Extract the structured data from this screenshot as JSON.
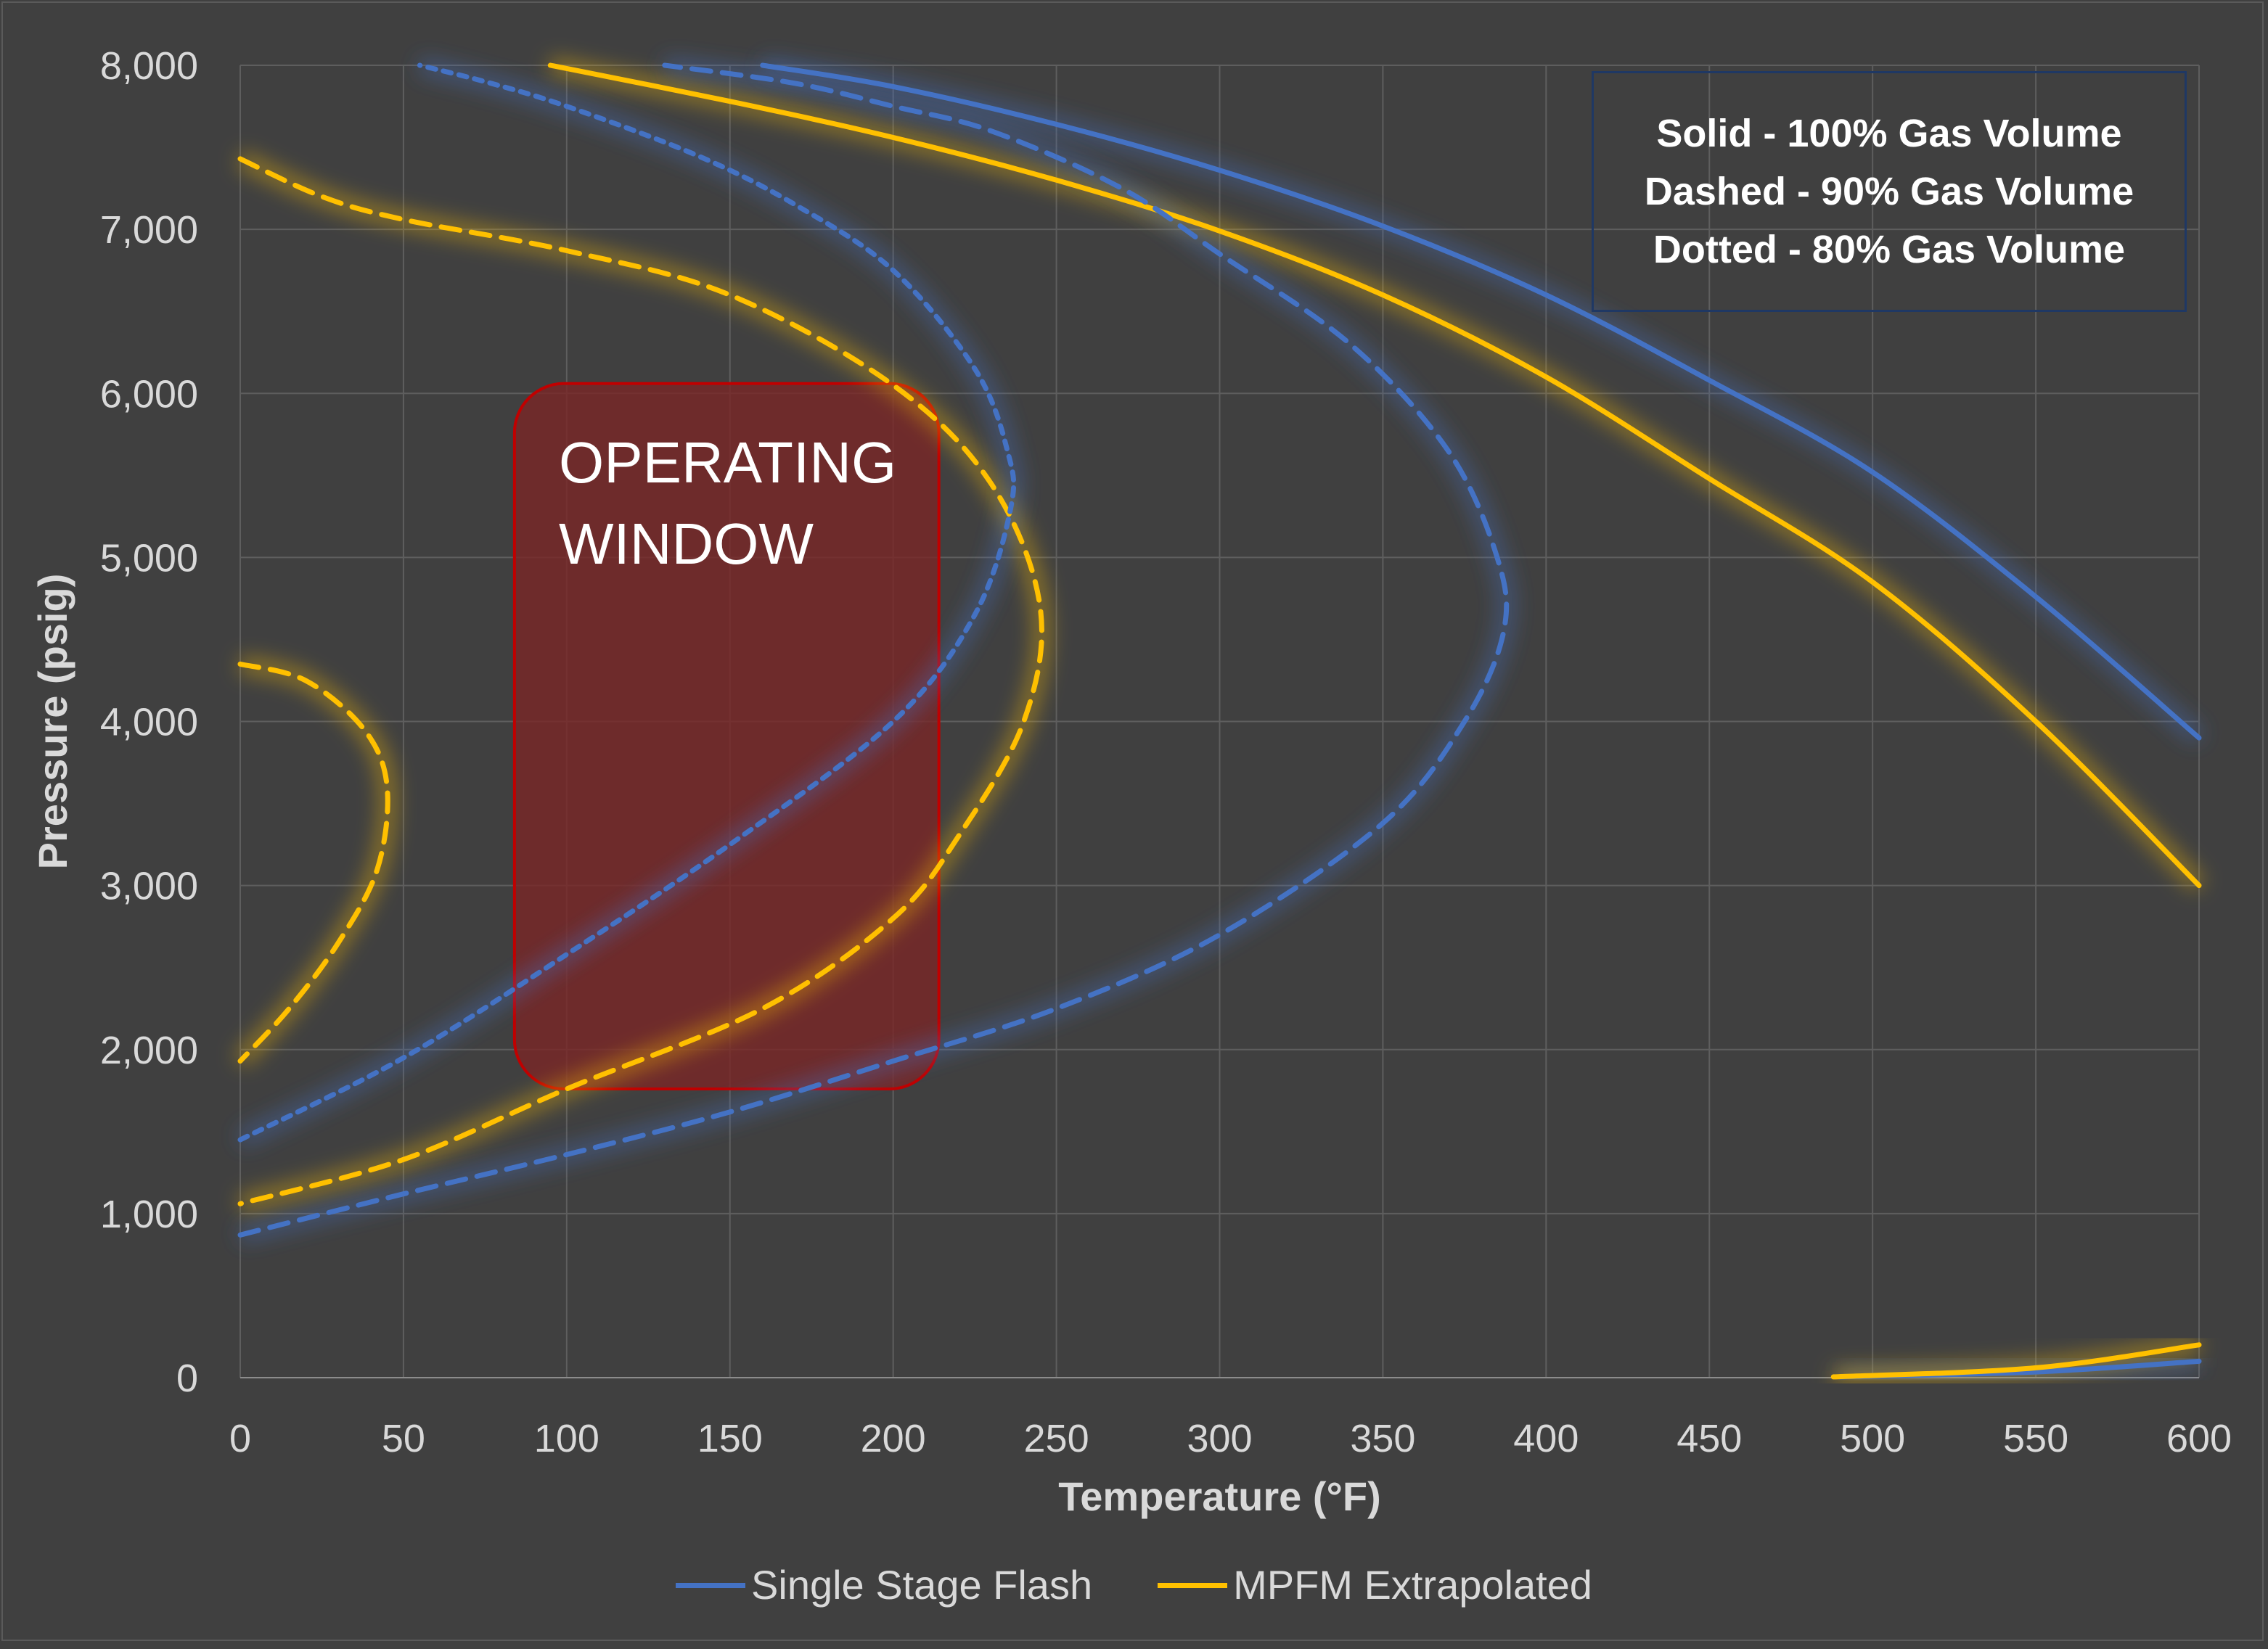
{
  "chart_data": {
    "type": "line",
    "xlabel": "Temperature (°F)",
    "ylabel": "Pressure (psig)",
    "xlim": [
      0,
      600
    ],
    "ylim": [
      0,
      8000
    ],
    "x_ticks": [
      "0",
      "50",
      "100",
      "150",
      "200",
      "250",
      "300",
      "350",
      "400",
      "450",
      "500",
      "550",
      "600"
    ],
    "y_ticks": [
      "0",
      "1,000",
      "2,000",
      "3,000",
      "4,000",
      "5,000",
      "6,000",
      "7,000",
      "8,000"
    ],
    "grid": true,
    "legend_position": "bottom",
    "legend_entries": [
      {
        "name": "Single Stage Flash",
        "color": "#4472c4"
      },
      {
        "name": "MPFM Extrapolated",
        "color": "#ffc000"
      }
    ],
    "annotation_box": {
      "lines": [
        "Solid - 100% Gas Volume",
        "Dashed - 90% Gas Volume",
        "Dotted - 80% Gas Volume"
      ],
      "position": "top-right"
    },
    "operating_window": {
      "label_lines": [
        "OPERATING",
        "WINDOW"
      ],
      "x_range": [
        84,
        214
      ],
      "y_range": [
        1760,
        6060
      ],
      "fill": "#7b2525",
      "border": "#c00000"
    },
    "series": [
      {
        "group": "Single Stage Flash",
        "style": "solid",
        "color": "#4472c4",
        "points": [
          [
            160,
            8000
          ],
          [
            200,
            7870
          ],
          [
            250,
            7640
          ],
          [
            300,
            7360
          ],
          [
            350,
            7020
          ],
          [
            400,
            6600
          ],
          [
            450,
            6080
          ],
          [
            500,
            5520
          ],
          [
            550,
            4760
          ],
          [
            600,
            3900
          ]
        ]
      },
      {
        "group": "Single Stage Flash",
        "style": "solid",
        "color": "#4472c4",
        "points": [
          [
            490,
            5
          ],
          [
            550,
            35
          ],
          [
            600,
            100
          ]
        ]
      },
      {
        "group": "MPFM Extrapolated",
        "style": "solid",
        "color": "#ffc000",
        "points": [
          [
            95,
            8000
          ],
          [
            150,
            7780
          ],
          [
            200,
            7560
          ],
          [
            250,
            7300
          ],
          [
            300,
            6990
          ],
          [
            350,
            6600
          ],
          [
            400,
            6100
          ],
          [
            450,
            5480
          ],
          [
            500,
            4850
          ],
          [
            550,
            4000
          ],
          [
            600,
            3000
          ]
        ]
      },
      {
        "group": "MPFM Extrapolated",
        "style": "solid",
        "color": "#ffc000",
        "points": [
          [
            488,
            5
          ],
          [
            550,
            60
          ],
          [
            600,
            200
          ]
        ]
      },
      {
        "group": "Single Stage Flash",
        "style": "dashed",
        "color": "#4472c4",
        "points": [
          [
            0,
            870
          ],
          [
            50,
            1120
          ],
          [
            100,
            1360
          ],
          [
            150,
            1620
          ],
          [
            200,
            1930
          ],
          [
            250,
            2250
          ],
          [
            300,
            2700
          ],
          [
            350,
            3380
          ],
          [
            375,
            4000
          ],
          [
            387,
            4550
          ],
          [
            385,
            5000
          ],
          [
            370,
            5650
          ],
          [
            340,
            6300
          ],
          [
            300,
            6850
          ],
          [
            270,
            7250
          ],
          [
            230,
            7600
          ],
          [
            200,
            7750
          ],
          [
            170,
            7890
          ],
          [
            130,
            8000
          ]
        ]
      },
      {
        "group": "MPFM Extrapolated",
        "style": "dashed",
        "color": "#ffc000",
        "points": [
          [
            0,
            7430
          ],
          [
            25,
            7200
          ],
          [
            50,
            7060
          ],
          [
            100,
            6870
          ],
          [
            150,
            6600
          ],
          [
            200,
            6050
          ],
          [
            230,
            5450
          ],
          [
            245,
            4700
          ],
          [
            240,
            4000
          ],
          [
            220,
            3300
          ],
          [
            200,
            2800
          ],
          [
            160,
            2250
          ],
          [
            100,
            1760
          ],
          [
            50,
            1330
          ],
          [
            0,
            1060
          ]
        ]
      },
      {
        "group": "MPFM Extrapolated",
        "style": "dashed",
        "color": "#ffc000",
        "points": [
          [
            0,
            4350
          ],
          [
            20,
            4250
          ],
          [
            38,
            3950
          ],
          [
            45,
            3600
          ],
          [
            42,
            3100
          ],
          [
            30,
            2650
          ],
          [
            15,
            2250
          ],
          [
            0,
            1930
          ]
        ]
      },
      {
        "group": "Single Stage Flash",
        "style": "dotted",
        "color": "#4472c4",
        "points": [
          [
            0,
            1450
          ],
          [
            50,
            1950
          ],
          [
            100,
            2580
          ],
          [
            150,
            3250
          ],
          [
            200,
            4000
          ],
          [
            225,
            4650
          ],
          [
            236,
            5300
          ],
          [
            235,
            5650
          ],
          [
            225,
            6150
          ],
          [
            200,
            6750
          ],
          [
            170,
            7150
          ],
          [
            140,
            7450
          ],
          [
            100,
            7750
          ],
          [
            75,
            7900
          ],
          [
            55,
            8000
          ]
        ]
      }
    ]
  }
}
